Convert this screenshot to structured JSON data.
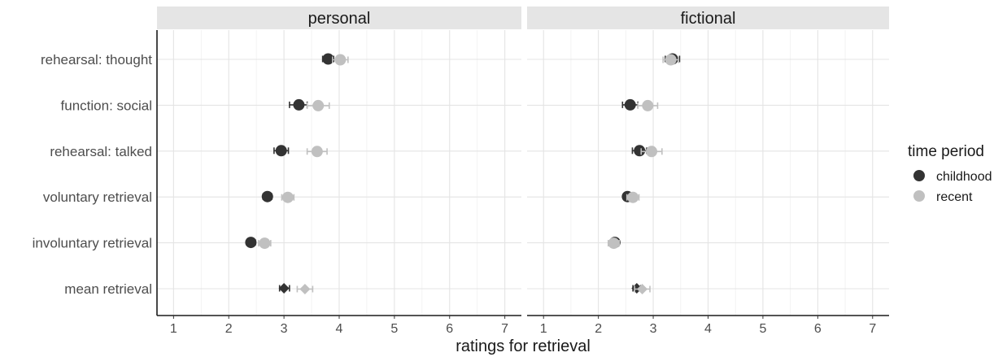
{
  "chart_data": {
    "type": "scatter",
    "xlabel": "ratings for retrieval",
    "xlim": [
      0.7,
      7.3
    ],
    "xticks": [
      "1",
      "2",
      "3",
      "4",
      "5",
      "6",
      "7"
    ],
    "categories": [
      "rehearsal: thought",
      "function: social",
      "rehearsal: talked",
      "voluntary retrieval",
      "involuntary retrieval",
      "mean retrieval"
    ],
    "panels": [
      {
        "title": "personal",
        "series": [
          {
            "name": "childhood",
            "color": "#333333",
            "values": [
              3.8,
              3.27,
              2.95,
              2.7,
              2.4,
              3.0
            ],
            "ci_low": [
              3.7,
              3.1,
              2.82,
              2.62,
              2.34,
              2.92
            ],
            "ci_high": [
              3.9,
              3.42,
              3.08,
              2.78,
              2.48,
              3.1
            ]
          },
          {
            "name": "recent",
            "color": "#c0c0c0",
            "values": [
              4.02,
              3.62,
              3.6,
              3.07,
              2.65,
              3.38
            ],
            "ci_low": [
              3.88,
              3.42,
              3.42,
              2.96,
              2.54,
              3.24
            ],
            "ci_high": [
              4.16,
              3.82,
              3.78,
              3.18,
              2.76,
              3.52
            ]
          }
        ]
      },
      {
        "title": "fictional",
        "series": [
          {
            "name": "childhood",
            "color": "#333333",
            "values": [
              3.35,
              2.58,
              2.75,
              2.53,
              2.3,
              2.7
            ],
            "ci_low": [
              3.22,
              2.44,
              2.62,
              2.46,
              2.24,
              2.63
            ],
            "ci_high": [
              3.48,
              2.72,
              2.88,
              2.6,
              2.36,
              2.77
            ]
          },
          {
            "name": "recent",
            "color": "#c0c0c0",
            "values": [
              3.32,
              2.9,
              2.97,
              2.63,
              2.28,
              2.8
            ],
            "ci_low": [
              3.18,
              2.72,
              2.78,
              2.52,
              2.18,
              2.66
            ],
            "ci_high": [
              3.46,
              3.08,
              3.16,
              2.74,
              2.38,
              2.94
            ]
          }
        ]
      }
    ],
    "legend": {
      "title": "time period",
      "position": "right",
      "entries": [
        {
          "name": "childhood",
          "color": "#333333"
        },
        {
          "name": "recent",
          "color": "#c0c0c0"
        }
      ]
    },
    "grid": true
  }
}
